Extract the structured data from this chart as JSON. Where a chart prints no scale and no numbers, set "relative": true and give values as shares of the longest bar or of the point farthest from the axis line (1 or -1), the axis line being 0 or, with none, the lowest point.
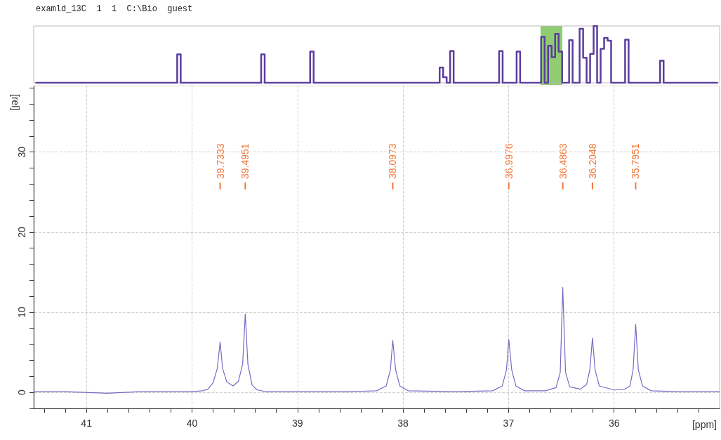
{
  "chart_data": [
    {
      "type": "step",
      "title": "examld_13C  1  1  C:\\Bio  guest",
      "relative": true,
      "categories": [
        null,
        null,
        null,
        null,
        null,
        null,
        null,
        null,
        null,
        null,
        null,
        null,
        null,
        null,
        null,
        null,
        null,
        null,
        null,
        null,
        null,
        null,
        null,
        null,
        null,
        null,
        null,
        null,
        null,
        null,
        null,
        null,
        null,
        null,
        null,
        null,
        null,
        null,
        null,
        null,
        null,
        null,
        null,
        null,
        null,
        null,
        null,
        null,
        null,
        null,
        null,
        null,
        null,
        null,
        null,
        null,
        null,
        null,
        null,
        null,
        null,
        null,
        null,
        null,
        null,
        null,
        null,
        null,
        null,
        null,
        null,
        null,
        null,
        null,
        null,
        null,
        null,
        null,
        null,
        null,
        null,
        null,
        null,
        null,
        null,
        null,
        null,
        null,
        null,
        null,
        null,
        null,
        null,
        null,
        null,
        null,
        null,
        null,
        null,
        null,
        null,
        null,
        null,
        null,
        null,
        null,
        null,
        null,
        null,
        null,
        null,
        null,
        null,
        null,
        null,
        null,
        null,
        null,
        null,
        null,
        null,
        null,
        null,
        null,
        null,
        null,
        null,
        null,
        null,
        null,
        null,
        null,
        null,
        null,
        null,
        null,
        null,
        null,
        null,
        null,
        null,
        null,
        null,
        null,
        null,
        null,
        null,
        null,
        null,
        null,
        null,
        null,
        null,
        null,
        null,
        null,
        null,
        null,
        null,
        null,
        null,
        null,
        null,
        null,
        null,
        null,
        null,
        null,
        null,
        null,
        null,
        null,
        null,
        null,
        null,
        null,
        null,
        null,
        null,
        null,
        null,
        null,
        null,
        null,
        null,
        null,
        null,
        null,
        null,
        null,
        null,
        null,
        null,
        null,
        null,
        null
      ],
      "series": [
        {
          "color": "#5a3d9e",
          "values": [
            0,
            0,
            0,
            0,
            0,
            0,
            0,
            0,
            0,
            0,
            0,
            0,
            0,
            0,
            0,
            0,
            0,
            0,
            0,
            0,
            0,
            0,
            0,
            0,
            0,
            0,
            0,
            0,
            0,
            0,
            0,
            0,
            0,
            0,
            0,
            0,
            0,
            0,
            0,
            0,
            0,
            0.5,
            0,
            0,
            0,
            0,
            0,
            0,
            0,
            0,
            0,
            0,
            0,
            0,
            0,
            0,
            0,
            0,
            0,
            0,
            0,
            0,
            0,
            0,
            0,
            0.5,
            0,
            0,
            0,
            0,
            0,
            0,
            0,
            0,
            0,
            0,
            0,
            0,
            0,
            0.55,
            0,
            0,
            0,
            0,
            0,
            0,
            0,
            0,
            0,
            0,
            0,
            0,
            0,
            0,
            0,
            0,
            0,
            0,
            0,
            0,
            0,
            0,
            0,
            0,
            0,
            0,
            0,
            0,
            0,
            0,
            0,
            0,
            0,
            0,
            0,
            0,
            0.27,
            0.1,
            0,
            0.56,
            0,
            0,
            0,
            0,
            0,
            0,
            0,
            0,
            0,
            0,
            0,
            0,
            0,
            0.56,
            0,
            0,
            0,
            0,
            0.55,
            0,
            0,
            0,
            0,
            0,
            0,
            0.81,
            0,
            0.65,
            0.45,
            0.86,
            0.55,
            0,
            0,
            0.75,
            0,
            0,
            0.95,
            0.44,
            0,
            0.51,
            1,
            0,
            0.6,
            0.79,
            0.74,
            0,
            0,
            0,
            0,
            0.76,
            0,
            0,
            0,
            0,
            0,
            0,
            0,
            0,
            0,
            0.39,
            0,
            0,
            0,
            0,
            0,
            0,
            0,
            0,
            0,
            0,
            0,
            0,
            0,
            0,
            0,
            0
          ]
        }
      ]
    },
    {
      "type": "line",
      "xlabel": "[ppm]",
      "ylabel": "[rel]",
      "color": "#7b68c4",
      "grid": true,
      "x": [
        41.5,
        41.2,
        40.8,
        40.5,
        40.0,
        39.9,
        39.85,
        39.8,
        39.76,
        39.7333,
        39.71,
        39.67,
        39.61,
        39.56,
        39.52,
        39.4951,
        39.47,
        39.43,
        39.38,
        39.3,
        38.5,
        38.25,
        38.16,
        38.12,
        38.0973,
        38.07,
        38.03,
        37.95,
        37.5,
        37.15,
        37.06,
        37.02,
        36.9976,
        36.97,
        36.93,
        36.85,
        36.65,
        36.55,
        36.51,
        36.4863,
        36.46,
        36.42,
        36.32,
        36.26,
        36.23,
        36.2048,
        36.18,
        36.14,
        36.0,
        35.9,
        35.85,
        35.82,
        35.7951,
        35.77,
        35.73,
        35.65,
        35.4,
        35.0
      ],
      "values": [
        0.1,
        0.1,
        -0.1,
        0.1,
        0.1,
        0.2,
        0.4,
        1.2,
        3.0,
        6.3,
        3.0,
        1.3,
        0.8,
        1.4,
        3.5,
        9.8,
        3.5,
        0.9,
        0.3,
        0.1,
        0.1,
        0.2,
        0.8,
        2.8,
        6.5,
        2.8,
        0.8,
        0.2,
        0.1,
        0.2,
        0.8,
        2.8,
        6.6,
        2.8,
        0.8,
        0.2,
        0.2,
        0.6,
        2.5,
        13.1,
        2.5,
        0.7,
        0.4,
        1.0,
        2.8,
        6.8,
        2.8,
        0.8,
        0.3,
        0.4,
        0.8,
        2.8,
        8.5,
        2.8,
        0.8,
        0.2,
        0.1,
        0.1
      ],
      "xlim": [
        41.5,
        35.0
      ],
      "ylim": [
        -2,
        38.3
      ],
      "xticks": [
        {
          "value": 41.4,
          "label": null
        },
        {
          "value": 41.2,
          "label": null
        },
        41,
        {
          "value": 40.8,
          "label": null
        },
        {
          "value": 40.6,
          "label": null
        },
        {
          "value": 40.4,
          "label": null
        },
        {
          "value": 40.2,
          "label": null
        },
        40,
        {
          "value": 39.8,
          "label": null
        },
        {
          "value": 39.6,
          "label": null
        },
        {
          "value": 39.4,
          "label": null
        },
        {
          "value": 39.2,
          "label": null
        },
        39,
        {
          "value": 38.8,
          "label": null
        },
        {
          "value": 38.6,
          "label": null
        },
        {
          "value": 38.4,
          "label": null
        },
        {
          "value": 38.2,
          "label": null
        },
        38,
        {
          "value": 37.8,
          "label": null
        },
        {
          "value": 37.6,
          "label": null
        },
        {
          "value": 37.4,
          "label": null
        },
        {
          "value": 37.2,
          "label": null
        },
        37,
        {
          "value": 36.8,
          "label": null
        },
        {
          "value": 36.6,
          "label": null
        },
        {
          "value": 36.4,
          "label": null
        },
        {
          "value": 36.2,
          "label": null
        },
        36,
        {
          "value": 35.8,
          "label": null
        },
        {
          "value": 35.6,
          "label": null
        },
        {
          "value": 35.4,
          "label": null
        },
        {
          "value": 35.2,
          "label": null
        }
      ],
      "yticks": [
        {
          "value": -2,
          "label": null
        },
        0,
        {
          "value": 2,
          "label": null
        },
        {
          "value": 4,
          "label": null
        },
        {
          "value": 6,
          "label": null
        },
        {
          "value": 8,
          "label": null
        },
        10,
        {
          "value": 12,
          "label": null
        },
        {
          "value": 14,
          "label": null
        },
        {
          "value": 16,
          "label": null
        },
        {
          "value": 18,
          "label": null
        },
        20,
        {
          "value": 22,
          "label": null
        },
        {
          "value": 24,
          "label": null
        },
        {
          "value": 26,
          "label": null
        },
        {
          "value": 28,
          "label": null
        },
        30,
        {
          "value": 32,
          "label": null
        },
        {
          "value": 34,
          "label": null
        },
        {
          "value": 36,
          "label": null
        },
        {
          "value": 38,
          "label": null
        }
      ],
      "annotations": [
        {
          "text": "39.7333",
          "x": 39.7333
        },
        {
          "text": "39.4951",
          "x": 39.4951
        },
        {
          "text": "38.0973",
          "x": 38.0973
        },
        {
          "text": "36.9976",
          "x": 36.9976
        },
        {
          "text": "36.4863",
          "x": 36.4863
        },
        {
          "text": "36.2048",
          "x": 36.2048
        },
        {
          "text": "35.7951",
          "x": 35.7951
        }
      ]
    }
  ]
}
